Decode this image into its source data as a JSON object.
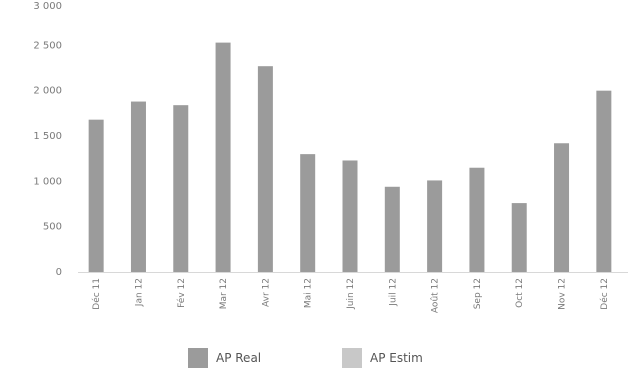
{
  "chart_data": {
    "type": "bar",
    "categories": [
      "Déc 11",
      "Jan 12",
      "Fév 12",
      "Mar 12",
      "Avr 12",
      "Mai 12",
      "Juin 12",
      "Juil 12",
      "Août 12",
      "Sep 12",
      "Oct 12",
      "Nov 12",
      "Déc 12"
    ],
    "series": [
      {
        "name": "AP Real",
        "values": [
          1680,
          1880,
          1840,
          2530,
          2270,
          1300,
          1230,
          940,
          1010,
          1150,
          760,
          1420,
          2000
        ],
        "color": "#9b9b9b"
      },
      {
        "name": "AP Estim",
        "values": [
          0,
          0,
          0,
          0,
          0,
          0,
          0,
          0,
          0,
          0,
          0,
          0,
          0
        ],
        "color": "#c8c8c8"
      }
    ],
    "yticks": [
      "0",
      "500",
      "1 000",
      "1 500",
      "2 000",
      "2 500",
      "3 000"
    ],
    "ylim": [
      0,
      3000
    ],
    "grid": false,
    "legend_position": "bottom",
    "title": "",
    "xlabel": "",
    "ylabel": ""
  },
  "legend": {
    "items": [
      {
        "label": "AP Real",
        "color": "#9b9b9b"
      },
      {
        "label": "AP Estim",
        "color": "#c8c8c8"
      }
    ]
  }
}
